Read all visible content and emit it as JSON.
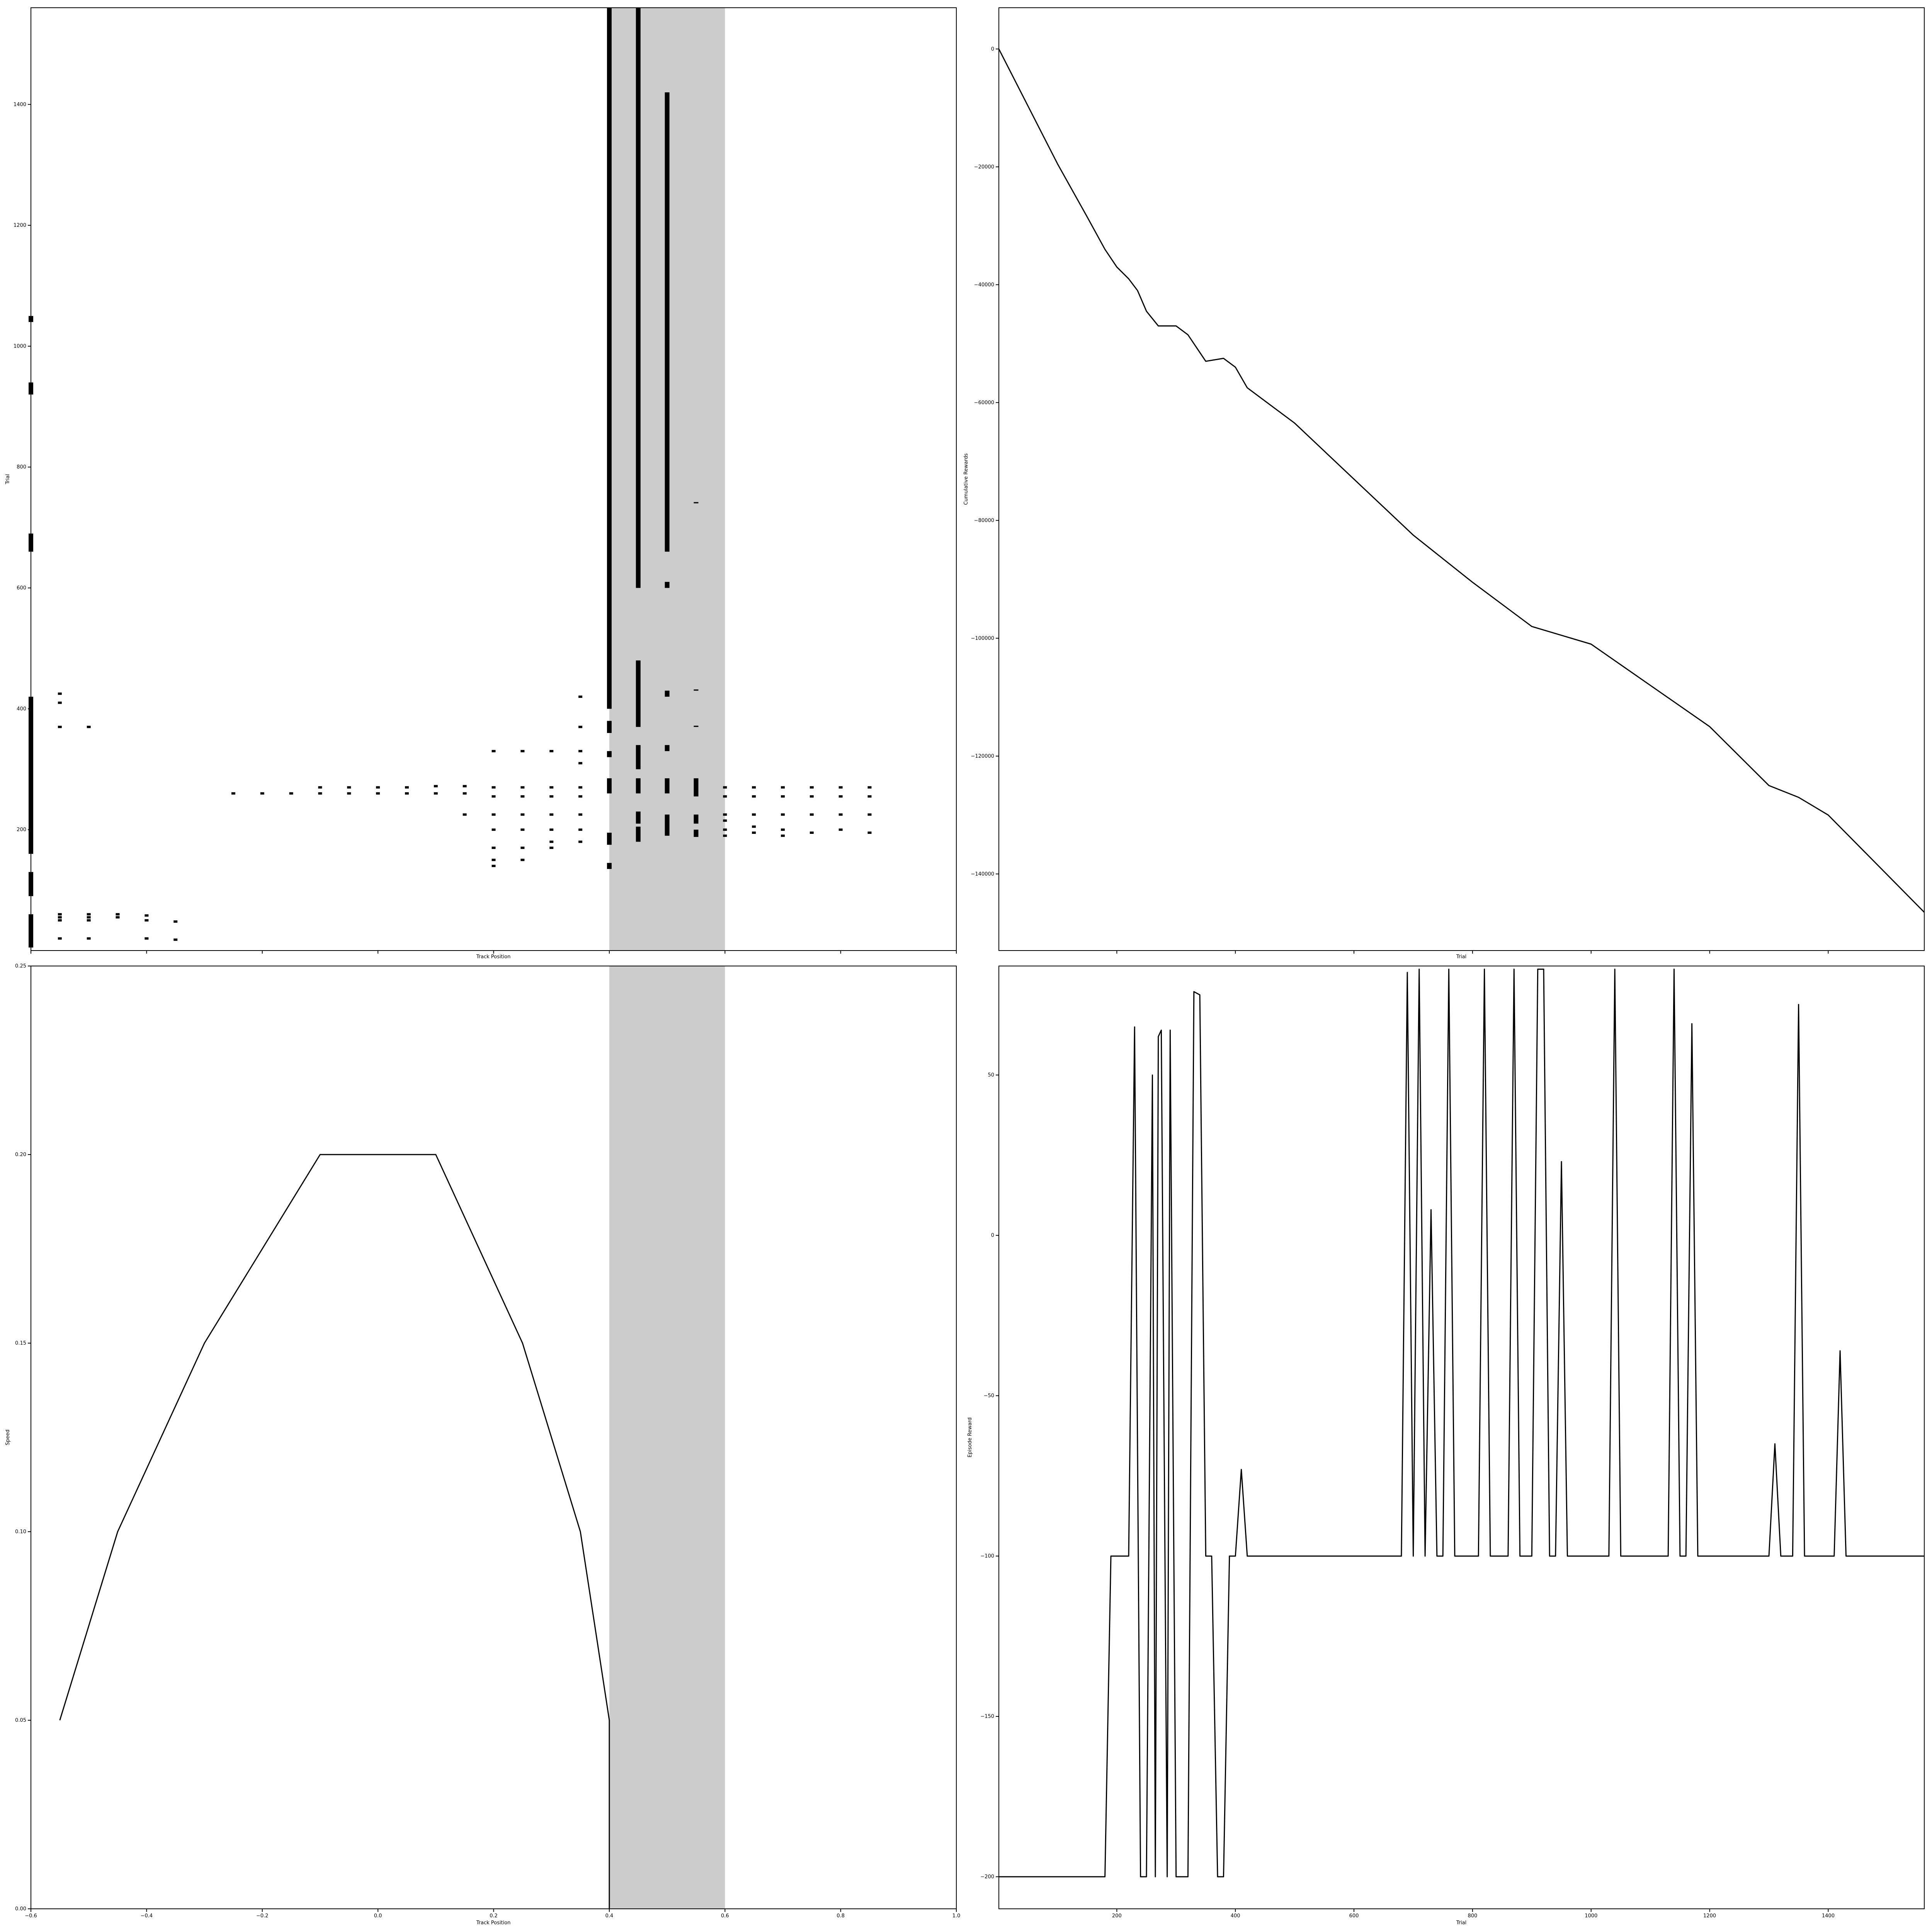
{
  "chart_data": [
    {
      "type": "scatter",
      "xlabel": "Track Position",
      "ylabel": "Trial",
      "xlim": [
        -0.6,
        1.0
      ],
      "ylim": [
        0,
        1560
      ],
      "xticks": [
        -0.6,
        -0.4,
        -0.2,
        0.0,
        0.2,
        0.4,
        0.6,
        0.8,
        1.0
      ],
      "xtick_labels_visible": false,
      "yticks": [
        200,
        400,
        600,
        800,
        1000,
        1200,
        1400
      ],
      "ytick_labels": [
        "200",
        "400",
        "600",
        "800",
        "1000",
        "1200",
        "1400"
      ],
      "shaded_region_x": [
        0.4,
        0.6
      ],
      "shade_color": "#cccccc",
      "mark_color": "#000000",
      "series": [
        {
          "x": -0.6,
          "ranges": [
            [
              5,
              60
            ],
            [
              90,
              130
            ],
            [
              160,
              420
            ],
            [
              660,
              690
            ],
            [
              920,
              940
            ],
            [
              1040,
              1050
            ]
          ]
        },
        {
          "x": 0.4,
          "ranges": [
            [
              135,
              145
            ],
            [
              175,
              195
            ],
            [
              260,
              285
            ],
            [
              320,
              330
            ],
            [
              360,
              380
            ],
            [
              400,
              1560
            ]
          ]
        },
        {
          "x": 0.45,
          "ranges": [
            [
              180,
              205
            ],
            [
              210,
              230
            ],
            [
              260,
              285
            ],
            [
              300,
              340
            ],
            [
              370,
              480
            ],
            [
              600,
              1560
            ]
          ]
        },
        {
          "x": 0.5,
          "ranges": [
            [
              190,
              225
            ],
            [
              260,
              285
            ],
            [
              330,
              340
            ],
            [
              420,
              430
            ],
            [
              600,
              610
            ],
            [
              660,
              1420
            ]
          ]
        },
        {
          "x": 0.55,
          "ranges": [
            [
              188,
              200
            ],
            [
              210,
              225
            ],
            [
              255,
              285
            ],
            [
              370,
              372
            ],
            [
              430,
              432
            ],
            [
              740,
              742
            ]
          ]
        }
      ],
      "points": [
        [
          -0.55,
          20
        ],
        [
          -0.55,
          50
        ],
        [
          -0.55,
          55
        ],
        [
          -0.55,
          60
        ],
        [
          -0.55,
          370
        ],
        [
          -0.55,
          410
        ],
        [
          -0.55,
          425
        ],
        [
          -0.5,
          20
        ],
        [
          -0.5,
          50
        ],
        [
          -0.5,
          55
        ],
        [
          -0.5,
          60
        ],
        [
          -0.5,
          370
        ],
        [
          -0.45,
          55
        ],
        [
          -0.45,
          60
        ],
        [
          -0.4,
          20
        ],
        [
          -0.4,
          50
        ],
        [
          -0.4,
          58
        ],
        [
          -0.35,
          18
        ],
        [
          -0.35,
          48
        ],
        [
          -0.25,
          260
        ],
        [
          -0.2,
          260
        ],
        [
          -0.15,
          260
        ],
        [
          -0.1,
          260
        ],
        [
          -0.1,
          270
        ],
        [
          -0.05,
          260
        ],
        [
          -0.05,
          270
        ],
        [
          0.0,
          260
        ],
        [
          0.0,
          270
        ],
        [
          0.05,
          260
        ],
        [
          0.05,
          270
        ],
        [
          0.1,
          260
        ],
        [
          0.1,
          272
        ],
        [
          0.15,
          260
        ],
        [
          0.15,
          272
        ],
        [
          0.15,
          225
        ],
        [
          0.2,
          140
        ],
        [
          0.2,
          150
        ],
        [
          0.2,
          170
        ],
        [
          0.2,
          200
        ],
        [
          0.2,
          225
        ],
        [
          0.2,
          255
        ],
        [
          0.2,
          270
        ],
        [
          0.2,
          330
        ],
        [
          0.25,
          150
        ],
        [
          0.25,
          170
        ],
        [
          0.25,
          200
        ],
        [
          0.25,
          225
        ],
        [
          0.25,
          255
        ],
        [
          0.25,
          270
        ],
        [
          0.25,
          330
        ],
        [
          0.3,
          170
        ],
        [
          0.3,
          180
        ],
        [
          0.3,
          200
        ],
        [
          0.3,
          225
        ],
        [
          0.3,
          255
        ],
        [
          0.3,
          270
        ],
        [
          0.3,
          330
        ],
        [
          0.35,
          180
        ],
        [
          0.35,
          200
        ],
        [
          0.35,
          225
        ],
        [
          0.35,
          255
        ],
        [
          0.35,
          270
        ],
        [
          0.35,
          310
        ],
        [
          0.35,
          330
        ],
        [
          0.35,
          370
        ],
        [
          0.35,
          420
        ],
        [
          0.6,
          190
        ],
        [
          0.6,
          200
        ],
        [
          0.6,
          215
        ],
        [
          0.6,
          225
        ],
        [
          0.6,
          255
        ],
        [
          0.6,
          270
        ],
        [
          0.65,
          195
        ],
        [
          0.65,
          205
        ],
        [
          0.65,
          225
        ],
        [
          0.65,
          255
        ],
        [
          0.65,
          270
        ],
        [
          0.7,
          190
        ],
        [
          0.7,
          200
        ],
        [
          0.7,
          225
        ],
        [
          0.7,
          255
        ],
        [
          0.7,
          270
        ],
        [
          0.75,
          195
        ],
        [
          0.75,
          225
        ],
        [
          0.75,
          255
        ],
        [
          0.75,
          270
        ],
        [
          0.8,
          200
        ],
        [
          0.8,
          225
        ],
        [
          0.8,
          255
        ],
        [
          0.8,
          270
        ],
        [
          0.85,
          195
        ],
        [
          0.85,
          225
        ],
        [
          0.85,
          255
        ],
        [
          0.85,
          270
        ]
      ]
    },
    {
      "type": "line",
      "xlabel": "Trial",
      "ylabel": "Cumulative Rewards",
      "xlim": [
        1,
        1562
      ],
      "ylim": [
        -153000,
        7000
      ],
      "xticks": [
        200,
        400,
        600,
        800,
        1000,
        1200,
        1400
      ],
      "xtick_labels_visible": false,
      "yticks": [
        0,
        -20000,
        -40000,
        -60000,
        -80000,
        -100000,
        -120000,
        -140000
      ],
      "ytick_labels": [
        "0",
        "−20000",
        "−40000",
        "−60000",
        "−80000",
        "−100000",
        "−120000",
        "−140000"
      ],
      "x": [
        1,
        100,
        150,
        180,
        200,
        220,
        235,
        250,
        270,
        300,
        320,
        350,
        380,
        400,
        420,
        500,
        600,
        700,
        800,
        900,
        1000,
        1100,
        1200,
        1300,
        1350,
        1400,
        1562
      ],
      "y": [
        0,
        -19500,
        -28500,
        -34000,
        -37000,
        -39000,
        -41000,
        -44500,
        -47000,
        -47000,
        -48500,
        -53000,
        -52500,
        -54000,
        -57500,
        -63500,
        -73000,
        -82500,
        -90500,
        -98000,
        -101000,
        -108000,
        -115000,
        -125000,
        -127000,
        -130000,
        -146500
      ]
    },
    {
      "type": "line",
      "xlabel": "Track Position",
      "ylabel": "Speed",
      "xlim": [
        -0.6,
        1.0
      ],
      "ylim": [
        0.0,
        0.25
      ],
      "xticks": [
        -0.6,
        -0.4,
        -0.2,
        0.0,
        0.2,
        0.4,
        0.6,
        0.8,
        1.0
      ],
      "xtick_labels": [
        "−0.6",
        "−0.4",
        "−0.2",
        "0.0",
        "0.2",
        "0.4",
        "0.6",
        "0.8",
        "1.0"
      ],
      "yticks": [
        0.0,
        0.05,
        0.1,
        0.15,
        0.2,
        0.25
      ],
      "ytick_labels": [
        "0.00",
        "0.05",
        "0.10",
        "0.15",
        "0.20",
        "0.25"
      ],
      "shaded_region_x": [
        0.4,
        0.6
      ],
      "shade_color": "#cccccc",
      "x": [
        -0.55,
        -0.45,
        -0.3,
        -0.1,
        0.1,
        0.25,
        0.35,
        0.4,
        0.4
      ],
      "y": [
        0.05,
        0.1,
        0.15,
        0.2,
        0.2,
        0.15,
        0.1,
        0.05,
        0.0
      ]
    },
    {
      "type": "line",
      "xlabel": "Trial",
      "ylabel": "Episode Reward",
      "xlim": [
        1,
        1562
      ],
      "ylim": [
        -210,
        84
      ],
      "xticks": [
        200,
        400,
        600,
        800,
        1000,
        1200,
        1400
      ],
      "xtick_labels": [
        "200",
        "400",
        "600",
        "800",
        "1000",
        "1200",
        "1400"
      ],
      "yticks": [
        50,
        0,
        -50,
        -100,
        -150,
        -200
      ],
      "ytick_labels": [
        "50",
        "0",
        "−50",
        "−100",
        "−150",
        "−200"
      ],
      "x": [
        1,
        180,
        190,
        220,
        230,
        240,
        250,
        260,
        265,
        270,
        275,
        285,
        290,
        300,
        310,
        320,
        330,
        340,
        350,
        360,
        370,
        380,
        390,
        400,
        410,
        420,
        430,
        440,
        680,
        690,
        700,
        710,
        720,
        730,
        740,
        750,
        760,
        770,
        780,
        810,
        820,
        830,
        860,
        870,
        880,
        900,
        910,
        920,
        930,
        940,
        950,
        960,
        1030,
        1040,
        1050,
        1130,
        1140,
        1150,
        1160,
        1170,
        1180,
        1300,
        1310,
        1320,
        1340,
        1350,
        1360,
        1410,
        1420,
        1430,
        1562
      ],
      "y": [
        -200,
        -200,
        -100,
        -100,
        65,
        -200,
        -200,
        50,
        -200,
        62,
        64,
        -200,
        64,
        -200,
        -200,
        -200,
        76,
        75,
        -100,
        -100,
        -200,
        -200,
        -100,
        -100,
        -73,
        -100,
        -100,
        -100,
        -100,
        82,
        -100,
        83,
        -100,
        8,
        -100,
        -100,
        83,
        -100,
        -100,
        -100,
        83,
        -100,
        -100,
        83,
        -100,
        -100,
        83,
        83,
        -100,
        -100,
        23,
        -100,
        -100,
        83,
        -100,
        -100,
        83,
        -100,
        -100,
        66,
        -100,
        -100,
        -65,
        -100,
        -100,
        72,
        -100,
        -100,
        -36,
        -100,
        -100
      ]
    }
  ]
}
